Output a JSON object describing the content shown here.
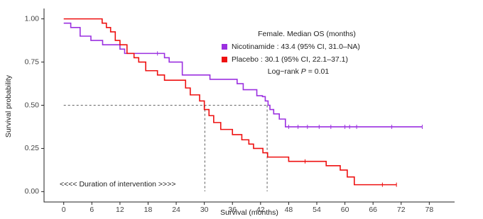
{
  "chart_data": {
    "type": "step",
    "x_label": "Survival (months)",
    "y_label": "Survival probability",
    "xlim": [
      -4.2,
      83.4
    ],
    "ylim": [
      -0.06,
      1.06
    ],
    "xticks": [
      0,
      6,
      12,
      18,
      24,
      30,
      36,
      42,
      48,
      54,
      60,
      66,
      72,
      78
    ],
    "yticks": [
      {
        "value": 0,
        "label": "0.00"
      },
      {
        "value": 0.25,
        "label": "0.25"
      },
      {
        "value": 0.5,
        "label": "0.50"
      },
      {
        "value": 0.75,
        "label": "0.75"
      },
      {
        "value": 1,
        "label": "1.00"
      }
    ],
    "legend_title": "Female.  Median OS (months)",
    "test_text": [
      "Log−rank ",
      "P",
      " = 0.01"
    ],
    "annotation": "<<<< Duration of intervention >>>>",
    "median_level": 0.5,
    "series": [
      {
        "name": "Nicotinamide : 43.4 (95% CI, 31.0–NA)",
        "color": "#9b30e0",
        "median": 43.4,
        "x": [
          0,
          1.5,
          3.5,
          5.8,
          8.3,
          12,
          13,
          21.5,
          22.5,
          25.3,
          31.2,
          37,
          38.3,
          41.2,
          42.4,
          43,
          43.6,
          44,
          44.8,
          46,
          47.3,
          76.5
        ],
        "values": [
          0.975,
          0.95,
          0.9,
          0.875,
          0.85,
          0.825,
          0.8,
          0.775,
          0.75,
          0.675,
          0.65,
          0.625,
          0.59,
          0.555,
          0.55,
          0.525,
          0.5,
          0.475,
          0.45,
          0.42,
          0.375,
          0.375
        ],
        "censored": [
          20,
          48,
          50,
          52,
          54.5,
          57,
          60,
          61,
          62.5,
          70,
          76.5
        ]
      },
      {
        "name": "Placebo : 30.1 (95% CI, 22.1–37.1)",
        "color": "#ee1111",
        "median": 30.1,
        "x": [
          0,
          8.2,
          9.1,
          10,
          11,
          12,
          13.5,
          15,
          16,
          17.5,
          20,
          21.5,
          26,
          27,
          29,
          30,
          31,
          32,
          33.5,
          36,
          38,
          39.5,
          40.5,
          42.5,
          43.5,
          48,
          56,
          59,
          60.5,
          62,
          71
        ],
        "values": [
          1,
          0.975,
          0.95,
          0.925,
          0.875,
          0.85,
          0.8,
          0.775,
          0.75,
          0.7,
          0.675,
          0.645,
          0.6,
          0.56,
          0.525,
          0.475,
          0.44,
          0.4,
          0.36,
          0.33,
          0.3,
          0.275,
          0.25,
          0.225,
          0.2,
          0.175,
          0.15,
          0.125,
          0.085,
          0.04,
          0.04
        ],
        "censored": [
          51.5,
          68,
          71
        ]
      }
    ]
  }
}
